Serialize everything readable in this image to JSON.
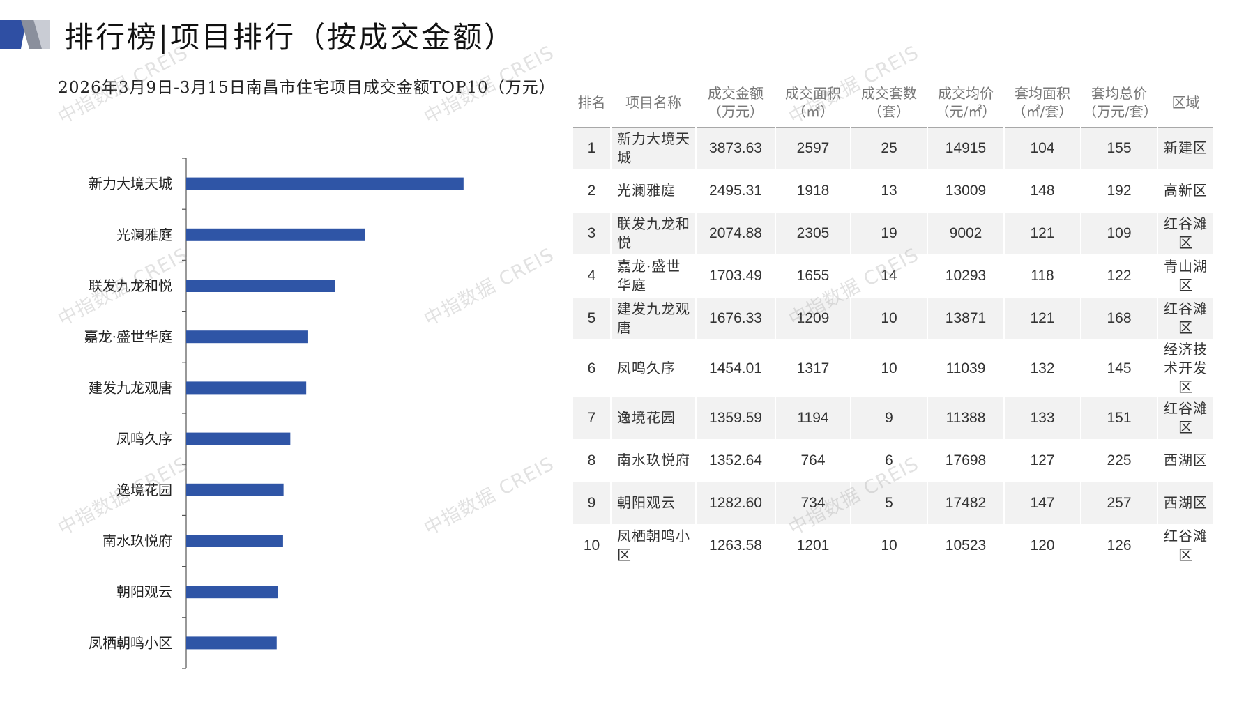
{
  "header": {
    "title": "排行榜|项目排行（按成交金额）",
    "accent_color": "#2f4fa3",
    "accent_light": "#c9ccd4"
  },
  "chart_data": {
    "type": "bar",
    "orientation": "horizontal",
    "title": "2026年3月9日-3月15日南昌市住宅项目成交金额TOP10（万元）",
    "categories": [
      "新力大境天城",
      "光澜雅庭",
      "联发九龙和悦",
      "嘉龙·盛世华庭",
      "建发九龙观唐",
      "凤鸣久序",
      "逸境花园",
      "南水玖悦府",
      "朝阳观云",
      "凤栖朝鸣小区"
    ],
    "values": [
      3873.63,
      2495.31,
      2074.88,
      1703.49,
      1676.33,
      1454.01,
      1359.59,
      1352.64,
      1282.6,
      1263.58
    ],
    "xlim": [
      0,
      5000
    ],
    "bar_color": "#2f55a6",
    "grid": false,
    "legend": "none"
  },
  "table": {
    "headers": [
      [
        "排名"
      ],
      [
        "项目名称"
      ],
      [
        "成交金额",
        "（万元）"
      ],
      [
        "成交面积",
        "（㎡）"
      ],
      [
        "成交套数",
        "（套）"
      ],
      [
        "成交均价",
        "（元/㎡）"
      ],
      [
        "套均面积",
        "（㎡/套）"
      ],
      [
        "套均总价",
        "（万元/套）"
      ],
      [
        "区域"
      ]
    ],
    "rows": [
      [
        "1",
        "新力大境天城",
        "3873.63",
        "2597",
        "25",
        "14915",
        "104",
        "155",
        "新建区"
      ],
      [
        "2",
        "光澜雅庭",
        "2495.31",
        "1918",
        "13",
        "13009",
        "148",
        "192",
        "高新区"
      ],
      [
        "3",
        "联发九龙和悦",
        "2074.88",
        "2305",
        "19",
        "9002",
        "121",
        "109",
        "红谷滩区"
      ],
      [
        "4",
        "嘉龙·盛世华庭",
        "1703.49",
        "1655",
        "14",
        "10293",
        "118",
        "122",
        "青山湖区"
      ],
      [
        "5",
        "建发九龙观唐",
        "1676.33",
        "1209",
        "10",
        "13871",
        "121",
        "168",
        "红谷滩区"
      ],
      [
        "6",
        "凤鸣久序",
        "1454.01",
        "1317",
        "10",
        "11039",
        "132",
        "145",
        "经济技术开发区"
      ],
      [
        "7",
        "逸境花园",
        "1359.59",
        "1194",
        "9",
        "11388",
        "133",
        "151",
        "红谷滩区"
      ],
      [
        "8",
        "南水玖悦府",
        "1352.64",
        "764",
        "6",
        "17698",
        "127",
        "225",
        "西湖区"
      ],
      [
        "9",
        "朝阳观云",
        "1282.60",
        "734",
        "5",
        "17482",
        "147",
        "257",
        "西湖区"
      ],
      [
        "10",
        "凤栖朝鸣小区",
        "1263.58",
        "1201",
        "10",
        "10523",
        "120",
        "126",
        "红谷滩区"
      ]
    ]
  },
  "watermark": "中指数据 CREIS"
}
